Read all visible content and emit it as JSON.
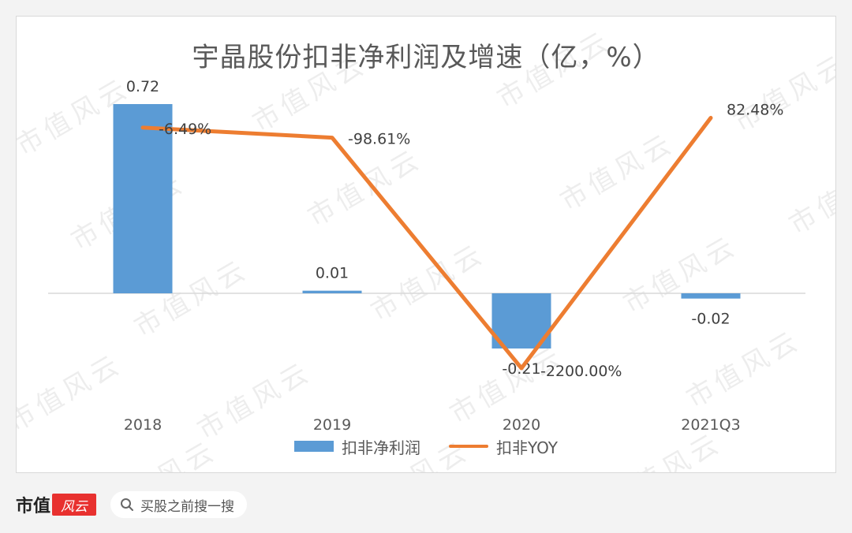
{
  "chart_data": {
    "type": "bar",
    "title": "宇晶股份扣非净利润及增速（亿，%）",
    "categories": [
      "2018",
      "2019",
      "2020",
      "2021Q3"
    ],
    "series": [
      {
        "name": "扣非净利润",
        "type": "bar",
        "values": [
          0.72,
          0.01,
          -0.21,
          -0.02
        ],
        "labels": [
          "0.72",
          "0.01",
          "-0.21",
          "-0.02"
        ],
        "axis": "primary"
      },
      {
        "name": "扣非YOY",
        "type": "line",
        "values": [
          -6.49,
          -98.61,
          -2200.0,
          82.48
        ],
        "labels": [
          "-6.49%",
          "-98.61%",
          "-2200.00%",
          "82.48%"
        ],
        "axis": "secondary"
      }
    ],
    "legend_position": "bottom",
    "grid": false,
    "colors": {
      "bar": "#5b9bd5",
      "line": "#ed7d31",
      "axis": "#d9d9d9",
      "text": "#595959"
    }
  },
  "watermark": "市值风云",
  "footer": {
    "brand_text": "市值",
    "brand_logo_text": "风云",
    "search_placeholder": "买股之前搜一搜"
  }
}
